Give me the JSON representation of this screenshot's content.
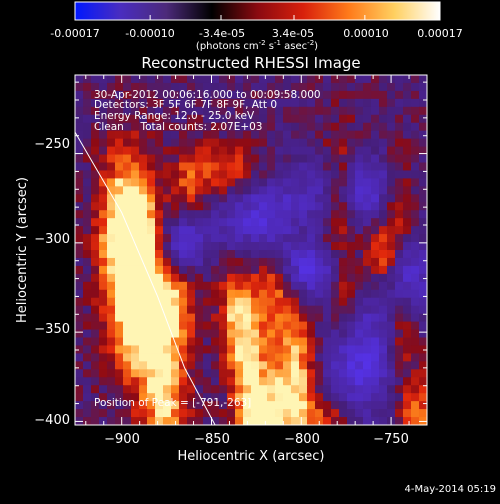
{
  "colorbar": {
    "ticks": [
      "-0.00017",
      "-0.00010",
      "-3.4e-05",
      "3.4e-05",
      "0.00010",
      "0.00017"
    ],
    "tick_values": [
      -0.00017,
      -0.0001,
      -3.4e-05,
      3.4e-05,
      0.0001,
      0.00017
    ],
    "range": [
      -0.00017,
      0.00017
    ],
    "units": "(photons cm",
    "units_exp1": "-2",
    "units_mid": " s",
    "units_exp2": "-1",
    "units_end": " asec",
    "units_exp3": "-2",
    "units_close": ")",
    "colors": [
      "#0018ff",
      "#4a2dbf",
      "#4c2a7a",
      "#000000",
      "#8a0a10",
      "#d8200c",
      "#ff7a1a",
      "#ffd060",
      "#ffffff"
    ]
  },
  "chart_data": {
    "type": "heatmap",
    "title": "Reconstructed RHESSI Image",
    "xlabel": "Heliocentric X (arcsec)",
    "ylabel": "Heliocentric Y (arcsec)",
    "xlim": [
      -926,
      -730
    ],
    "ylim": [
      -402,
      -206
    ],
    "xticks": [
      -900,
      -850,
      -800,
      -750
    ],
    "yticks": [
      -250,
      -300,
      -350,
      -400
    ],
    "xtick_labels": [
      "−900",
      "−850",
      "−800",
      "−750"
    ],
    "ytick_labels": [
      "−250",
      "−300",
      "−350",
      "−400"
    ],
    "annotations": [
      "30-Apr-2012 00:06:16.000 to 00:09:58.000",
      "Detectors: 3F 5F 6F 7F 8F 9F, Att 0",
      "Energy Range: 12.0 - 25.0 keV",
      "Clean     Total counts: 2.07E+03"
    ],
    "peak_label": "Position of Peak = [-791,-263]",
    "peak": [
      -791,
      -263
    ],
    "limb_points": [
      [
        -926,
        -238
      ],
      [
        -900,
        -283
      ],
      [
        -880,
        -330
      ],
      [
        -865,
        -370
      ],
      [
        -848,
        -402
      ]
    ]
  },
  "footer": {
    "date": "4-May-2014 05:19"
  }
}
